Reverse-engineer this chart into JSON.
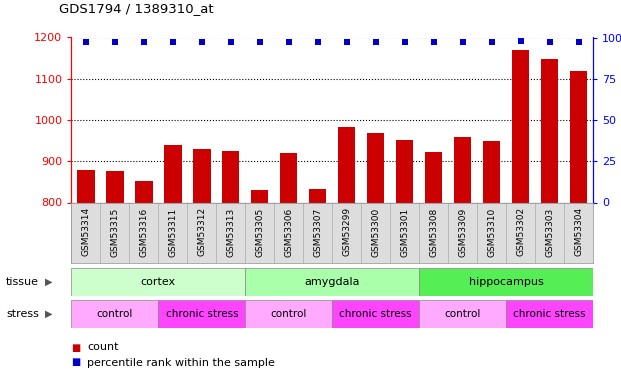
{
  "title": "GDS1794 / 1389310_at",
  "categories": [
    "GSM53314",
    "GSM53315",
    "GSM53316",
    "GSM53311",
    "GSM53312",
    "GSM53313",
    "GSM53305",
    "GSM53306",
    "GSM53307",
    "GSM53299",
    "GSM53300",
    "GSM53301",
    "GSM53308",
    "GSM53309",
    "GSM53310",
    "GSM53302",
    "GSM53303",
    "GSM53304"
  ],
  "counts": [
    878,
    877,
    852,
    940,
    930,
    925,
    830,
    920,
    832,
    984,
    968,
    952,
    923,
    960,
    948,
    1170,
    1148,
    1118
  ],
  "percentiles": [
    97,
    97,
    97,
    97,
    97,
    97,
    97,
    97,
    97,
    97,
    97,
    97,
    97,
    97,
    97,
    98,
    97,
    97
  ],
  "bar_color": "#cc0000",
  "dot_color": "#0000cc",
  "ylim_left": [
    800,
    1200
  ],
  "ylim_right": [
    0,
    100
  ],
  "yticks_left": [
    800,
    900,
    1000,
    1100,
    1200
  ],
  "yticks_right": [
    0,
    25,
    50,
    75,
    100
  ],
  "tissue_groups": [
    {
      "label": "cortex",
      "start": 0,
      "end": 6,
      "color": "#ccffcc"
    },
    {
      "label": "amygdala",
      "start": 6,
      "end": 12,
      "color": "#aaffaa"
    },
    {
      "label": "hippocampus",
      "start": 12,
      "end": 18,
      "color": "#55ee55"
    }
  ],
  "stress_groups": [
    {
      "label": "control",
      "start": 0,
      "end": 3,
      "color": "#ffaaff"
    },
    {
      "label": "chronic stress",
      "start": 3,
      "end": 6,
      "color": "#ff44ff"
    },
    {
      "label": "control",
      "start": 6,
      "end": 9,
      "color": "#ffaaff"
    },
    {
      "label": "chronic stress",
      "start": 9,
      "end": 12,
      "color": "#ff44ff"
    },
    {
      "label": "control",
      "start": 12,
      "end": 15,
      "color": "#ffaaff"
    },
    {
      "label": "chronic stress",
      "start": 15,
      "end": 18,
      "color": "#ff44ff"
    }
  ],
  "legend_items": [
    {
      "label": "count",
      "color": "#cc0000"
    },
    {
      "label": "percentile rank within the sample",
      "color": "#0000cc"
    }
  ],
  "xlabel_bg": "#dddddd"
}
